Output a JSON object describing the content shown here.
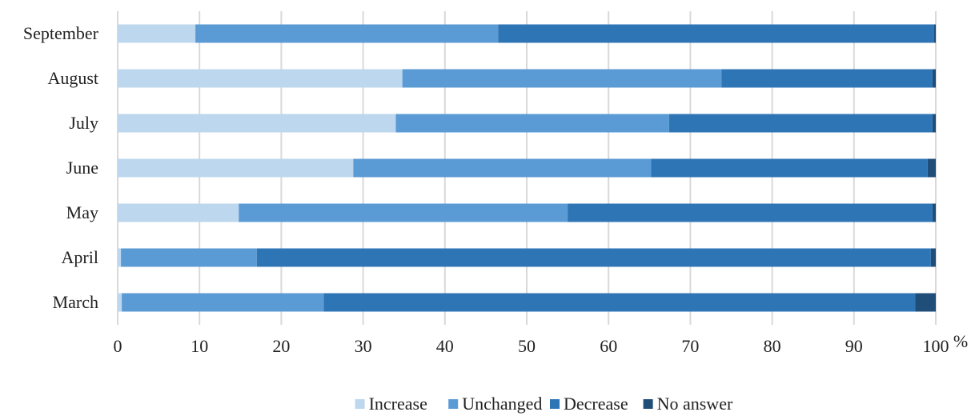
{
  "chart_data": {
    "type": "bar",
    "orientation": "horizontal",
    "stacked": true,
    "categories": [
      "September",
      "August",
      "July",
      "June",
      "May",
      "April",
      "March"
    ],
    "series": [
      {
        "name": "Increase",
        "color": "#bdd7ee",
        "values": [
          9.5,
          34.8,
          34.0,
          28.8,
          14.8,
          0.4,
          0.5
        ]
      },
      {
        "name": "Unchanged",
        "color": "#5b9bd5",
        "values": [
          37.0,
          39.0,
          33.4,
          36.4,
          40.2,
          16.6,
          24.7
        ]
      },
      {
        "name": "Decrease",
        "color": "#2e75b6",
        "values": [
          53.3,
          25.8,
          32.2,
          33.8,
          44.6,
          82.4,
          72.3
        ]
      },
      {
        "name": "No answer",
        "color": "#1f4e79",
        "values": [
          0.2,
          0.4,
          0.4,
          1.0,
          0.4,
          0.6,
          2.5
        ]
      }
    ],
    "xlim": [
      0,
      100
    ],
    "x_ticks": [
      "0",
      "10",
      "20",
      "30",
      "40",
      "50",
      "60",
      "70",
      "80",
      "90",
      "100"
    ],
    "x_unit_label": "%",
    "grid": "vertical",
    "legend_position": "bottom"
  }
}
